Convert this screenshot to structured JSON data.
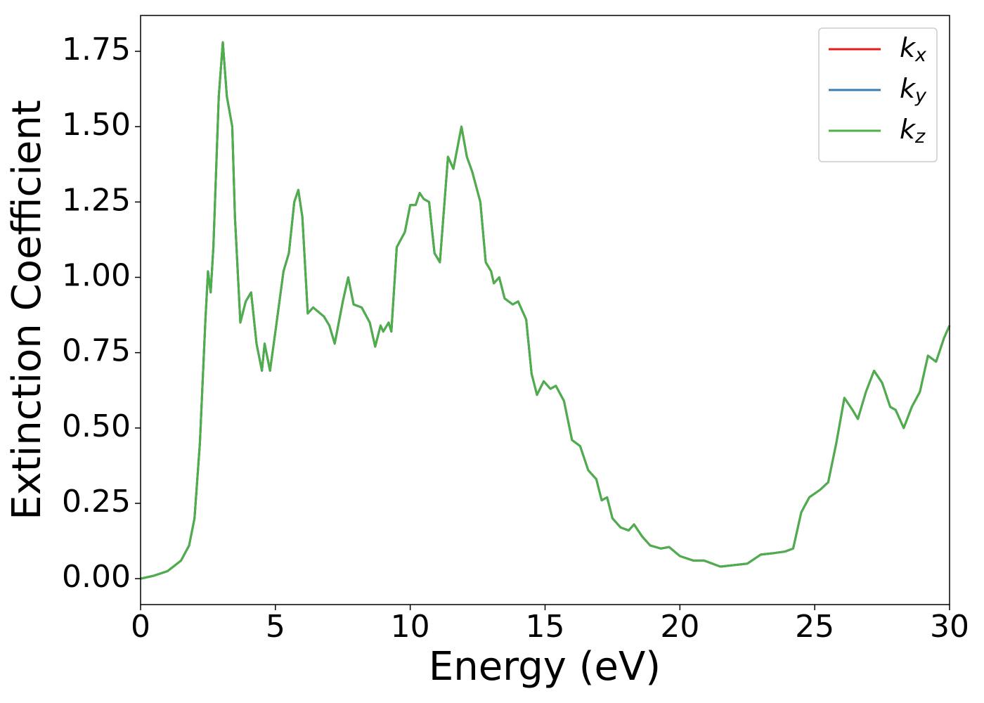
{
  "chart_data": {
    "type": "line",
    "x_label": "Energy (eV)",
    "y_label": "Extinction Coefficient",
    "xlim": [
      0,
      30
    ],
    "ylim": [
      -0.086,
      1.869
    ],
    "xticks": [
      0,
      5,
      10,
      15,
      20,
      25,
      30
    ],
    "yticks": [
      {
        "value": 0,
        "label": "0.00"
      },
      {
        "value": 0.25,
        "label": "0.25"
      },
      {
        "value": 0.5,
        "label": "0.50"
      },
      {
        "value": 0.75,
        "label": "0.75"
      },
      {
        "value": 1,
        "label": "1.00"
      },
      {
        "value": 1.25,
        "label": "1.25"
      },
      {
        "value": 1.5,
        "label": "1.50"
      },
      {
        "value": 1.75,
        "label": "1.75"
      }
    ],
    "legend": "upper right",
    "x": [
      0,
      0.5,
      1.0,
      1.5,
      1.8,
      2.0,
      2.2,
      2.4,
      2.5,
      2.6,
      2.7,
      2.9,
      3.05,
      3.2,
      3.4,
      3.5,
      3.7,
      3.9,
      4.1,
      4.3,
      4.5,
      4.6,
      4.8,
      5.0,
      5.3,
      5.5,
      5.7,
      5.85,
      6.0,
      6.2,
      6.4,
      6.8,
      7.0,
      7.2,
      7.5,
      7.7,
      7.9,
      8.2,
      8.5,
      8.7,
      8.9,
      9.0,
      9.2,
      9.3,
      9.5,
      9.8,
      10.0,
      10.2,
      10.35,
      10.5,
      10.7,
      10.9,
      11.1,
      11.4,
      11.6,
      11.9,
      12.1,
      12.3,
      12.6,
      12.8,
      13.0,
      13.1,
      13.3,
      13.5,
      13.8,
      14.0,
      14.3,
      14.5,
      14.7,
      14.95,
      15.2,
      15.4,
      15.7,
      16.0,
      16.3,
      16.6,
      16.9,
      17.1,
      17.3,
      17.5,
      17.8,
      18.1,
      18.3,
      18.6,
      18.9,
      19.3,
      19.6,
      20.0,
      20.5,
      20.9,
      21.2,
      21.5,
      22.0,
      22.5,
      23.0,
      23.5,
      23.9,
      24.2,
      24.5,
      24.8,
      25.2,
      25.5,
      25.8,
      26.1,
      26.4,
      26.6,
      26.9,
      27.2,
      27.5,
      27.8,
      28.0,
      28.3,
      28.6,
      28.9,
      29.2,
      29.5,
      29.8,
      30.0
    ],
    "series": [
      {
        "name": "kx",
        "color": "#e41a1c",
        "values": [
          0,
          0.01,
          0.025,
          0.06,
          0.11,
          0.2,
          0.45,
          0.85,
          1.02,
          0.95,
          1.1,
          1.6,
          1.78,
          1.6,
          1.5,
          1.2,
          0.85,
          0.92,
          0.95,
          0.78,
          0.69,
          0.78,
          0.69,
          0.82,
          1.02,
          1.08,
          1.25,
          1.29,
          1.2,
          0.88,
          0.9,
          0.87,
          0.84,
          0.78,
          0.92,
          1.0,
          0.91,
          0.9,
          0.85,
          0.77,
          0.84,
          0.82,
          0.85,
          0.82,
          1.1,
          1.15,
          1.24,
          1.24,
          1.28,
          1.26,
          1.25,
          1.08,
          1.05,
          1.4,
          1.36,
          1.5,
          1.4,
          1.35,
          1.25,
          1.05,
          1.02,
          0.98,
          1.0,
          0.93,
          0.91,
          0.92,
          0.86,
          0.68,
          0.61,
          0.655,
          0.63,
          0.64,
          0.59,
          0.46,
          0.44,
          0.36,
          0.33,
          0.26,
          0.27,
          0.2,
          0.17,
          0.16,
          0.18,
          0.14,
          0.11,
          0.1,
          0.105,
          0.075,
          0.06,
          0.06,
          0.05,
          0.04,
          0.045,
          0.05,
          0.08,
          0.085,
          0.09,
          0.1,
          0.22,
          0.27,
          0.295,
          0.32,
          0.45,
          0.6,
          0.56,
          0.53,
          0.62,
          0.69,
          0.65,
          0.57,
          0.56,
          0.5,
          0.57,
          0.62,
          0.74,
          0.72,
          0.8,
          0.84
        ]
      },
      {
        "name": "ky",
        "color": "#377eb8",
        "values": [
          0,
          0.01,
          0.025,
          0.06,
          0.11,
          0.2,
          0.45,
          0.85,
          1.02,
          0.95,
          1.1,
          1.6,
          1.78,
          1.6,
          1.5,
          1.2,
          0.85,
          0.92,
          0.95,
          0.78,
          0.69,
          0.78,
          0.69,
          0.82,
          1.02,
          1.08,
          1.25,
          1.29,
          1.2,
          0.88,
          0.9,
          0.87,
          0.84,
          0.78,
          0.92,
          1.0,
          0.91,
          0.9,
          0.85,
          0.77,
          0.84,
          0.82,
          0.85,
          0.82,
          1.1,
          1.15,
          1.24,
          1.24,
          1.28,
          1.26,
          1.25,
          1.08,
          1.05,
          1.4,
          1.36,
          1.5,
          1.4,
          1.35,
          1.25,
          1.05,
          1.02,
          0.98,
          1.0,
          0.93,
          0.91,
          0.92,
          0.86,
          0.68,
          0.61,
          0.655,
          0.63,
          0.64,
          0.59,
          0.46,
          0.44,
          0.36,
          0.33,
          0.26,
          0.27,
          0.2,
          0.17,
          0.16,
          0.18,
          0.14,
          0.11,
          0.1,
          0.105,
          0.075,
          0.06,
          0.06,
          0.05,
          0.04,
          0.045,
          0.05,
          0.08,
          0.085,
          0.09,
          0.1,
          0.22,
          0.27,
          0.295,
          0.32,
          0.45,
          0.6,
          0.56,
          0.53,
          0.62,
          0.69,
          0.65,
          0.57,
          0.56,
          0.5,
          0.57,
          0.62,
          0.74,
          0.72,
          0.8,
          0.84
        ]
      },
      {
        "name": "kz",
        "color": "#4daf4a",
        "values": [
          0,
          0.01,
          0.025,
          0.06,
          0.11,
          0.2,
          0.45,
          0.85,
          1.02,
          0.95,
          1.1,
          1.6,
          1.78,
          1.6,
          1.5,
          1.2,
          0.85,
          0.92,
          0.95,
          0.78,
          0.69,
          0.78,
          0.69,
          0.82,
          1.02,
          1.08,
          1.25,
          1.29,
          1.2,
          0.88,
          0.9,
          0.87,
          0.84,
          0.78,
          0.92,
          1.0,
          0.91,
          0.9,
          0.85,
          0.77,
          0.84,
          0.82,
          0.85,
          0.82,
          1.1,
          1.15,
          1.24,
          1.24,
          1.28,
          1.26,
          1.25,
          1.08,
          1.05,
          1.4,
          1.36,
          1.5,
          1.4,
          1.35,
          1.25,
          1.05,
          1.02,
          0.98,
          1.0,
          0.93,
          0.91,
          0.92,
          0.86,
          0.68,
          0.61,
          0.655,
          0.63,
          0.64,
          0.59,
          0.46,
          0.44,
          0.36,
          0.33,
          0.26,
          0.27,
          0.2,
          0.17,
          0.16,
          0.18,
          0.14,
          0.11,
          0.1,
          0.105,
          0.075,
          0.06,
          0.06,
          0.05,
          0.04,
          0.045,
          0.05,
          0.08,
          0.085,
          0.09,
          0.1,
          0.22,
          0.27,
          0.295,
          0.32,
          0.45,
          0.6,
          0.56,
          0.53,
          0.62,
          0.69,
          0.65,
          0.57,
          0.56,
          0.5,
          0.57,
          0.62,
          0.74,
          0.72,
          0.8,
          0.84
        ]
      }
    ]
  }
}
